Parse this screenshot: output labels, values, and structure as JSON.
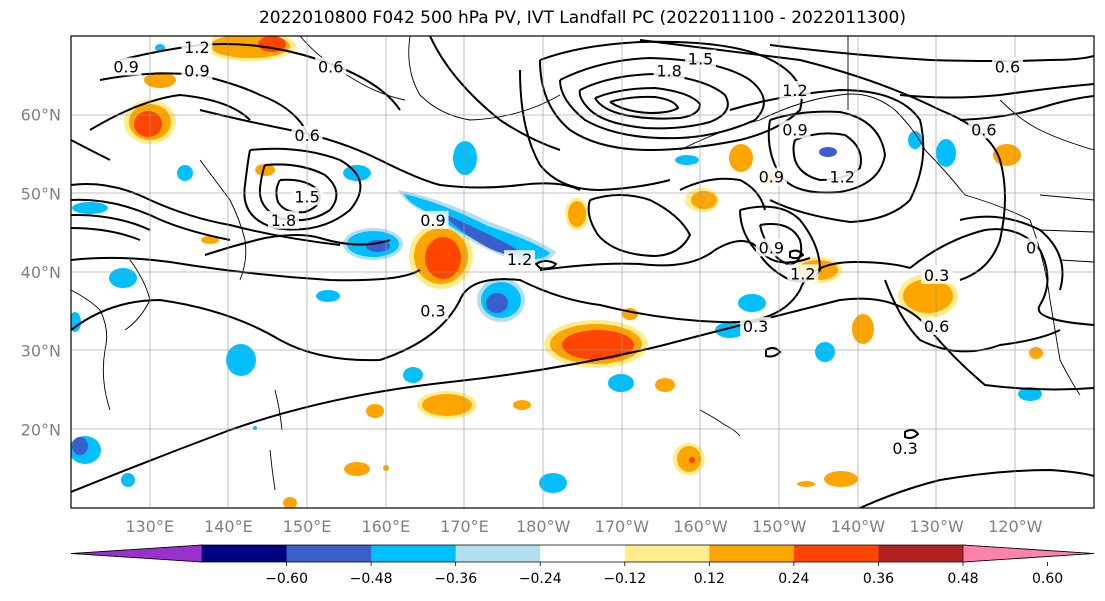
{
  "title": "2022010800 F042 500 hPa PV, IVT Landfall PC (2022011100 - 2022011300)",
  "lat_ticks": [
    {
      "label": "60°N",
      "lat": 60
    },
    {
      "label": "50°N",
      "lat": 50
    },
    {
      "label": "40°N",
      "lat": 40
    },
    {
      "label": "30°N",
      "lat": 30
    },
    {
      "label": "20°N",
      "lat": 20
    }
  ],
  "lon_ticks": [
    {
      "label": "130°E",
      "lon": 130
    },
    {
      "label": "140°E",
      "lon": 140
    },
    {
      "label": "150°E",
      "lon": 150
    },
    {
      "label": "160°E",
      "lon": 160
    },
    {
      "label": "170°E",
      "lon": 170
    },
    {
      "label": "180°W",
      "lon": 180
    },
    {
      "label": "170°W",
      "lon": 190
    },
    {
      "label": "160°W",
      "lon": 200
    },
    {
      "label": "150°W",
      "lon": 210
    },
    {
      "label": "140°W",
      "lon": 220
    },
    {
      "label": "130°W",
      "lon": 230
    },
    {
      "label": "120°W",
      "lon": 240
    }
  ],
  "map_extent": {
    "lon_min": 120,
    "lon_max": 250,
    "lat_min": 10,
    "lat_max": 70
  },
  "colorbar": {
    "colors": [
      "#9932cc",
      "#000080",
      "#3a5fcd",
      "#00bfff",
      "#b2dfee",
      "#ffffff",
      "#ffec8b",
      "#ffa500",
      "#ff4500",
      "#b22222",
      "#ff82ab"
    ],
    "tick_labels": [
      "−0.60",
      "−0.48",
      "−0.36",
      "−0.24",
      "−0.12",
      "0.12",
      "0.24",
      "0.36",
      "0.48",
      "0.60"
    ]
  },
  "contour_labels": [
    {
      "text": "0.9",
      "lon": 127,
      "lat": 66
    },
    {
      "text": "1.2",
      "lon": 136,
      "lat": 68.5
    },
    {
      "text": "0.9",
      "lon": 136,
      "lat": 65.5
    },
    {
      "text": "0.6",
      "lon": 153,
      "lat": 66
    },
    {
      "text": "0.6",
      "lon": 150,
      "lat": 57.3
    },
    {
      "text": "1.5",
      "lon": 150,
      "lat": 49.5
    },
    {
      "text": "1.8",
      "lon": 147,
      "lat": 46.5
    },
    {
      "text": "0.9",
      "lon": 166,
      "lat": 46.5
    },
    {
      "text": "1.2",
      "lon": 177,
      "lat": 41.5
    },
    {
      "text": "1.8",
      "lon": 196,
      "lat": 65.5
    },
    {
      "text": "1.5",
      "lon": 200,
      "lat": 67
    },
    {
      "text": "1.2",
      "lon": 212,
      "lat": 63
    },
    {
      "text": "0.9",
      "lon": 212,
      "lat": 58
    },
    {
      "text": "0.9",
      "lon": 209,
      "lat": 52
    },
    {
      "text": "1.2",
      "lon": 218,
      "lat": 52
    },
    {
      "text": "0.9",
      "lon": 209,
      "lat": 43
    },
    {
      "text": "1.2",
      "lon": 213,
      "lat": 39.7
    },
    {
      "text": "0.6",
      "lon": 239,
      "lat": 66
    },
    {
      "text": "0.6",
      "lon": 236,
      "lat": 58
    },
    {
      "text": "0.3",
      "lon": 230,
      "lat": 39.5
    },
    {
      "text": "0.6",
      "lon": 230,
      "lat": 33
    },
    {
      "text": "0.3",
      "lon": 207,
      "lat": 33
    },
    {
      "text": "0.3",
      "lon": 166,
      "lat": 35
    },
    {
      "text": "0.3",
      "lon": 226,
      "lat": 17.5
    },
    {
      "text": "0",
      "lon": 242,
      "lat": 43
    }
  ]
}
